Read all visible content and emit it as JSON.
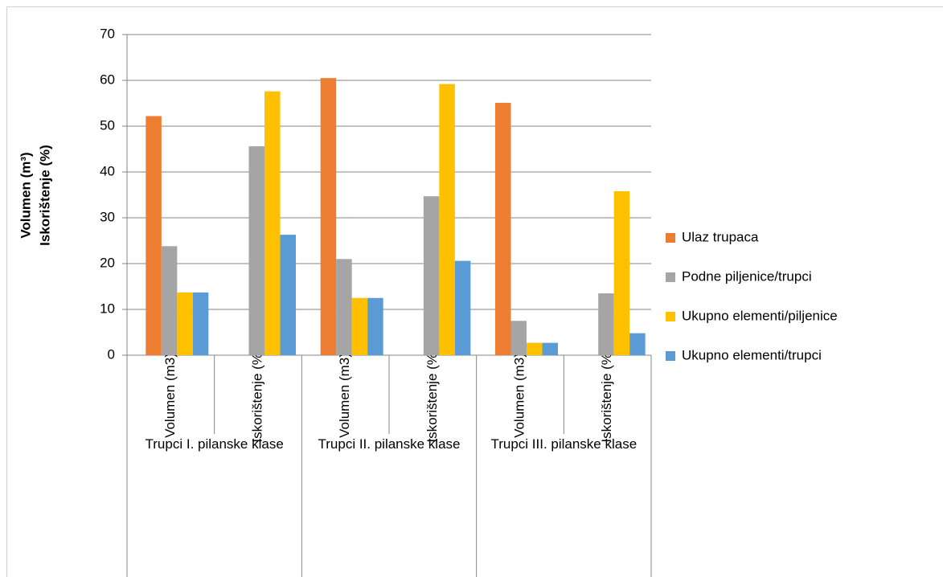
{
  "chart_data": {
    "type": "bar",
    "ylabel": [
      "Volumen (m³)",
      "Iskorištenje (%)"
    ],
    "categories": [
      "Volumen (m3)",
      "Iskorištenje (%)",
      "Volumen (m3)",
      "Iskorištenje (%)",
      "Volumen (m3)",
      "Iskorištenje (%)"
    ],
    "groups": [
      "Trupci I. pilanske klase",
      "Trupci II. pilanske klase",
      "Trupci III. pilanske klase"
    ],
    "series": [
      {
        "name": "Ulaz trupaca",
        "color": "#ed7d31",
        "values": [
          52.2,
          null,
          60.5,
          null,
          55.1,
          null
        ]
      },
      {
        "name": "Podne piljenice/trupci",
        "color": "#a5a5a5",
        "values": [
          23.8,
          45.6,
          21.0,
          34.7,
          7.5,
          13.5
        ]
      },
      {
        "name": "Ukupno elementi/piljenice",
        "color": "#ffc000",
        "values": [
          13.7,
          57.6,
          12.5,
          59.2,
          2.7,
          35.8
        ]
      },
      {
        "name": "Ukupno elementi/trupci",
        "color": "#5b9bd5",
        "values": [
          13.7,
          26.3,
          12.5,
          20.6,
          2.7,
          4.8
        ]
      }
    ],
    "ylim": [
      0,
      70
    ],
    "yticks": [
      0,
      10,
      20,
      30,
      40,
      50,
      60,
      70
    ],
    "grid": true,
    "legend": "right"
  }
}
